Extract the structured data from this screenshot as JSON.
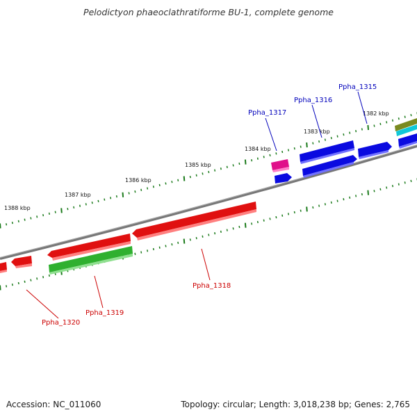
{
  "title": "Pelodictyon phaeoclathratiforme BU-1, complete genome",
  "footer": {
    "accession": "Accession: NC_011060",
    "topology": "Topology: circular; Length: 3,018,238 bp; Genes: 2,765"
  },
  "colors": {
    "backbone": "#808080",
    "tick": "#1a7a1a",
    "gene_red": "#e01010",
    "gene_blue": "#0a0ae0",
    "gene_green": "#2fb02f",
    "gene_magenta": "#e0108a",
    "gene_olive": "#7a8a20",
    "gene_cyan": "#10c8d8",
    "label_red": "#cc0000",
    "label_blue": "#0000bb"
  },
  "scale_labels": [
    "1388 kbp",
    "1387 kbp",
    "1386 kbp",
    "1385 kbp",
    "1384 kbp",
    "1383 kbp",
    "1382 kbp"
  ],
  "gene_labels": [
    {
      "text": "Ppha_1315",
      "color": "blue"
    },
    {
      "text": "Ppha_1316",
      "color": "blue"
    },
    {
      "text": "Ppha_1317",
      "color": "blue"
    },
    {
      "text": "Ppha_1318",
      "color": "red"
    },
    {
      "text": "Ppha_1319",
      "color": "red"
    },
    {
      "text": "Ppha_1320",
      "color": "red"
    }
  ]
}
